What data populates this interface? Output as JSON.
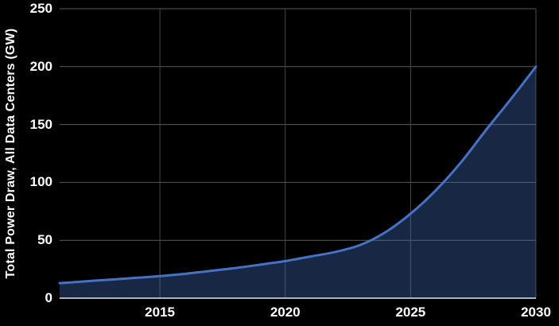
{
  "chart_data": {
    "type": "area",
    "title": "",
    "xlabel": "",
    "ylabel": "Total Power Draw, All Data Centers (GW)",
    "x": [
      2011,
      2012,
      2013,
      2014,
      2015,
      2016,
      2017,
      2018,
      2019,
      2020,
      2021,
      2022,
      2023,
      2024,
      2025,
      2026,
      2027,
      2028,
      2029,
      2030
    ],
    "series": [
      {
        "name": "Total Power Draw, All Data Centers (GW)",
        "values": [
          13,
          14.5,
          16,
          17.5,
          19,
          21,
          23.5,
          26,
          29,
          32,
          36,
          40,
          46,
          57,
          73,
          93,
          117,
          145,
          172,
          200
        ]
      }
    ],
    "xlim": [
      2011,
      2030
    ],
    "ylim": [
      0,
      250
    ],
    "x_ticks": [
      "2015",
      "2020",
      "2025",
      "2030"
    ],
    "x_tick_years": [
      2015,
      2020,
      2025,
      2030
    ],
    "y_ticks": [
      0,
      50,
      100,
      150,
      200,
      250
    ],
    "grid": true,
    "legend": false,
    "colors": {
      "background": "#000000",
      "line": "#4472c4",
      "fill": "#4472c4",
      "fill_opacity": 0.35,
      "grid_horizontal": "#5a5a5a",
      "grid_vertical": "#474747",
      "axis_line": "#e7e6e6",
      "text": "#ffffff"
    }
  }
}
